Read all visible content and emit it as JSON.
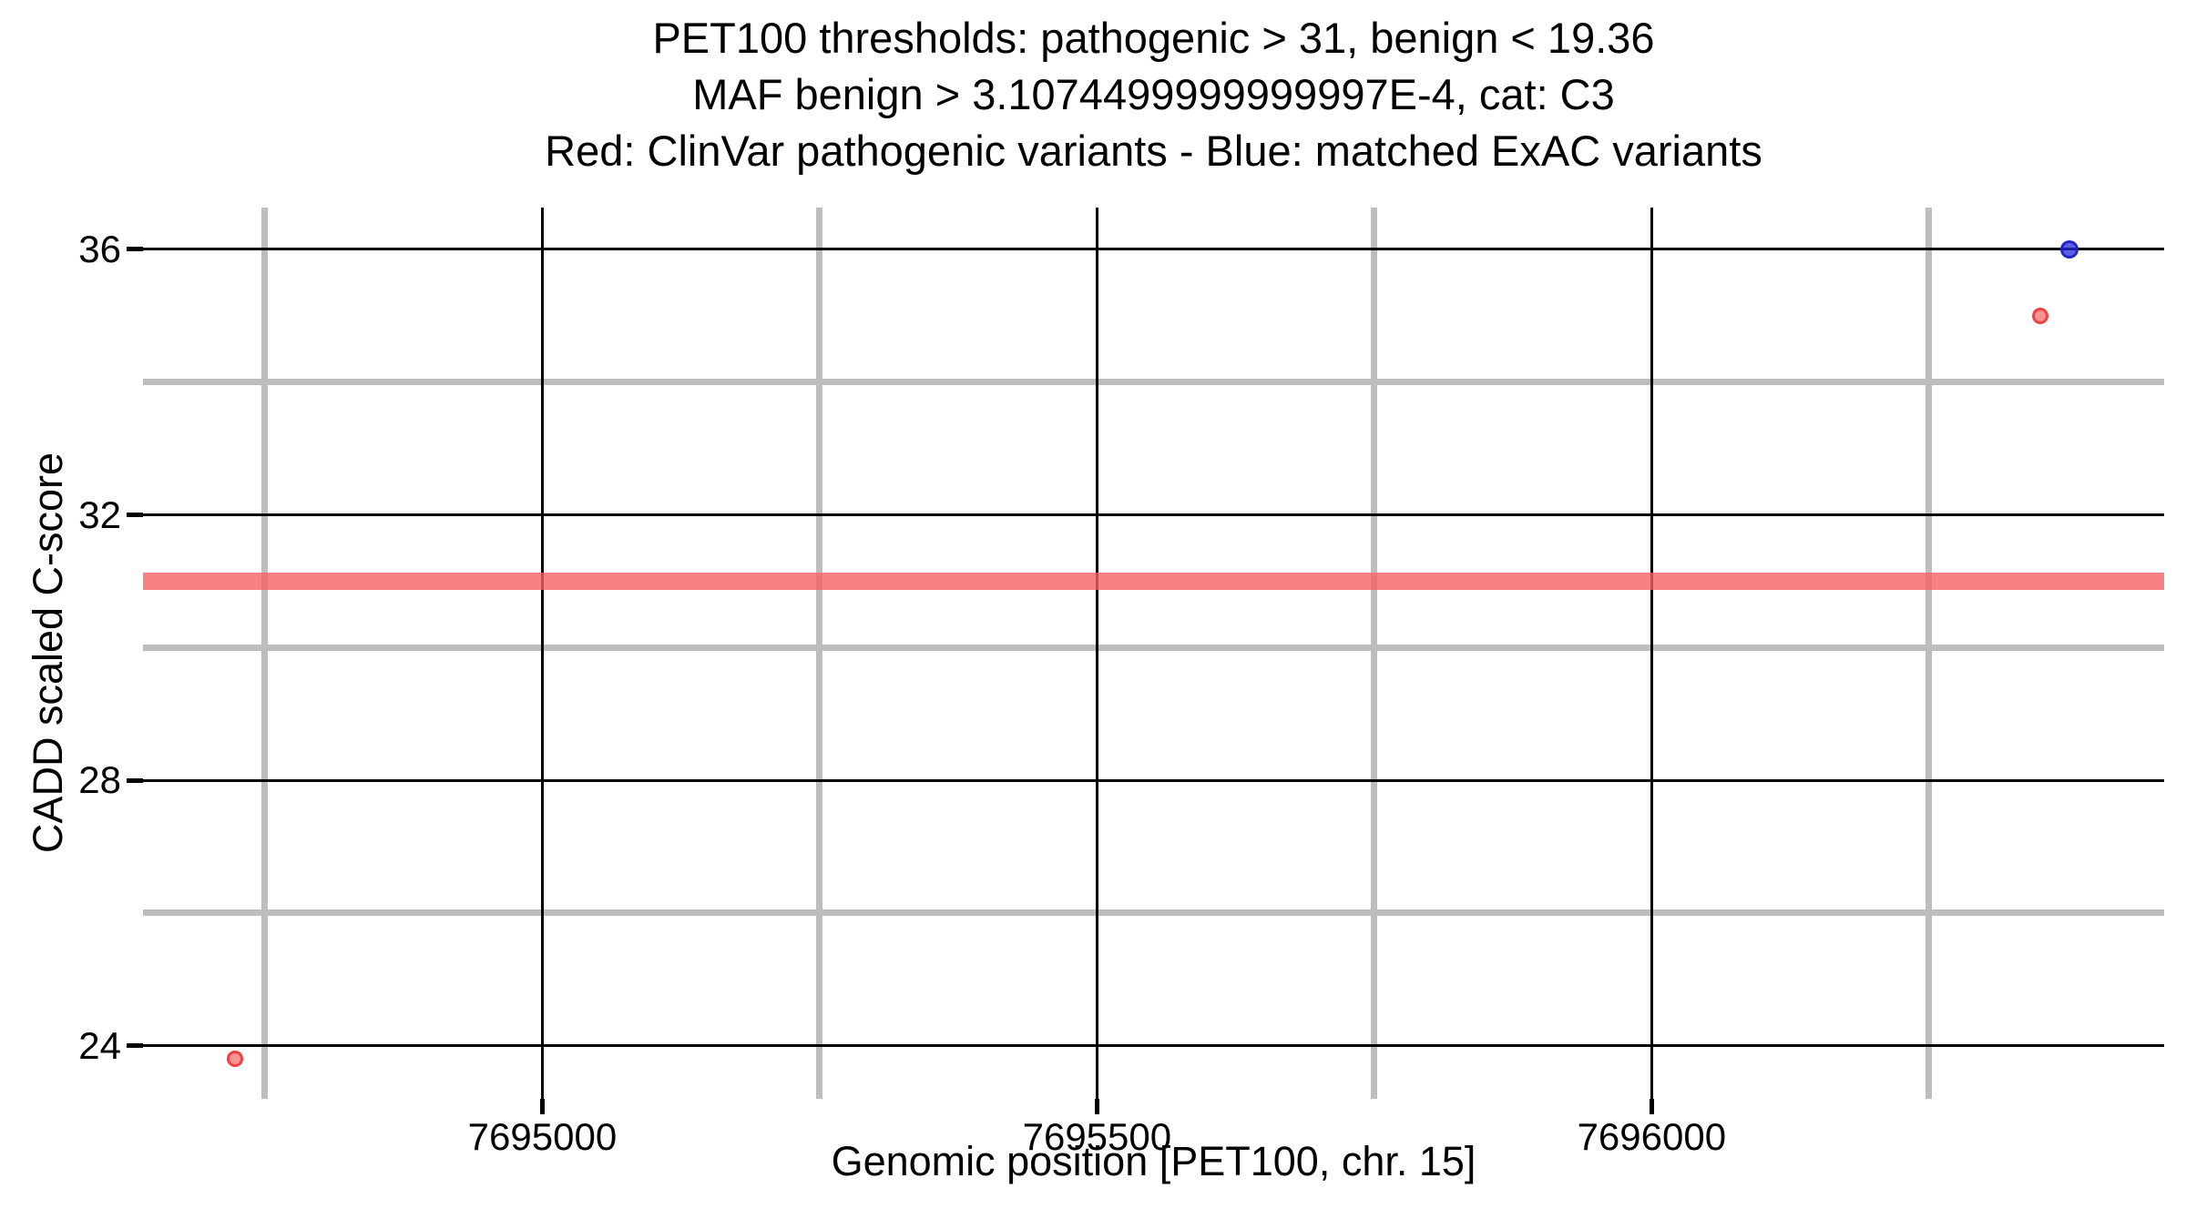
{
  "chart_data": {
    "type": "scatter",
    "title_lines": [
      "PET100 thresholds: pathogenic > 31, benign < 19.36",
      "MAF benign > 3.1074499999999997E-4, cat: C3",
      "Red: ClinVar pathogenic variants - Blue: matched ExAC variants"
    ],
    "xlabel": "Genomic position [PET100, chr. 15]",
    "ylabel": "CADD scaled C-score",
    "xlim": [
      7694640,
      7696462
    ],
    "ylim": [
      23.2,
      36.63
    ],
    "x_ticks": [
      {
        "value": 7695000,
        "label": "7695000"
      },
      {
        "value": 7695500,
        "label": "7695500"
      },
      {
        "value": 7696000,
        "label": "7696000"
      }
    ],
    "y_ticks": [
      {
        "value": 36,
        "label": "36"
      },
      {
        "value": 32,
        "label": "32"
      },
      {
        "value": 28,
        "label": "28"
      },
      {
        "value": 24,
        "label": "24"
      }
    ],
    "x_minor_gridlines": [
      7694750,
      7695250,
      7695750,
      7696250
    ],
    "y_minor_gridlines": [
      34,
      30,
      26
    ],
    "grid": {
      "major_color": "#000000",
      "minor_color": "#BDBDBD",
      "grid_on": true
    },
    "threshold_band": {
      "y": 31,
      "color": "rgba(249,97,97,0.8)"
    },
    "legend_position": "in-title",
    "series": [
      {
        "name": "ClinVar pathogenic variants",
        "color_fill": "rgba(243,80,80,0.62)",
        "color_stroke": "rgba(240,50,50,0.85)",
        "marker_diameter": 18,
        "points": [
          {
            "x": 7694723,
            "y": 23.8
          },
          {
            "x": 7696350,
            "y": 35.0
          }
        ]
      },
      {
        "name": "matched ExAC variants",
        "color_fill": "rgba(40,40,218,0.75)",
        "color_stroke": "rgba(30,30,200,0.9)",
        "marker_diameter": 20,
        "points": [
          {
            "x": 7696377,
            "y": 36.0
          }
        ]
      }
    ]
  }
}
